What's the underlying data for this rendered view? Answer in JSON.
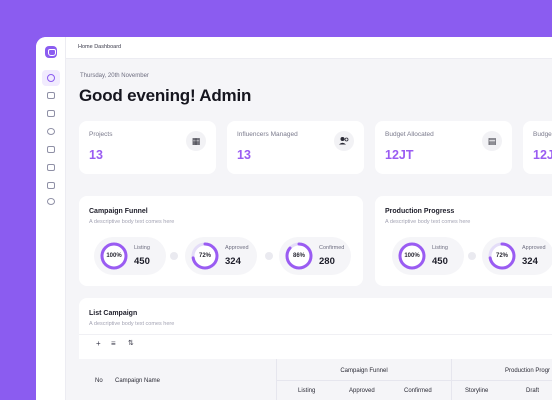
{
  "topbar": {
    "title": "Home Dashboard"
  },
  "header": {
    "date": "Thursday, 20th November",
    "greeting": "Good evening! Admin"
  },
  "sidebar": {
    "icons": [
      "dashboard-icon",
      "box-icon",
      "list-icon",
      "chat-icon",
      "layers-icon",
      "document-icon",
      "calendar-icon",
      "settings-icon"
    ]
  },
  "stats": [
    {
      "label": "Projects",
      "value": "13",
      "icon": "projects-icon",
      "glyph": "▦"
    },
    {
      "label": "Influencers Managed",
      "value": "13",
      "icon": "users-icon",
      "glyph": "👥"
    },
    {
      "label": "Budget Allocated",
      "value": "12JT",
      "icon": "wallet-icon",
      "glyph": "▤"
    },
    {
      "label": "Budge",
      "value": "12J",
      "icon": "wallet-icon",
      "glyph": ""
    }
  ],
  "campaign_funnel": {
    "title": "Campaign Funnel",
    "subtitle": "A descriptive body text comes here",
    "items": [
      {
        "pct_label": "100%",
        "pct": 1.0,
        "label": "Listing",
        "value": "450"
      },
      {
        "pct_label": "72%",
        "pct": 0.72,
        "label": "Approved",
        "value": "324"
      },
      {
        "pct_label": "86%",
        "pct": 0.86,
        "label": "Confirmed",
        "value": "280"
      }
    ]
  },
  "production_progress": {
    "title": "Production Progress",
    "subtitle": "A descriptive body text comes here",
    "items": [
      {
        "pct_label": "100%",
        "pct": 1.0,
        "label": "Listing",
        "value": "450"
      },
      {
        "pct_label": "72%",
        "pct": 0.72,
        "label": "Approved",
        "value": "324"
      }
    ]
  },
  "list_campaign": {
    "title": "List Campaign",
    "subtitle": "A descriptive body text comes here",
    "toolbar": {
      "add": "+",
      "filter": "≡",
      "sort": "⇅"
    },
    "columns": {
      "no": "No",
      "name": "Campaign Name",
      "group_funnel": "Campaign Funnel",
      "group_production": "Production Progr",
      "listing": "Listing",
      "approved": "Approved",
      "confirmed": "Confirmed",
      "storyline": "Storyline",
      "draft": "Draft"
    }
  },
  "colors": {
    "accent": "#9A5CF2",
    "background": "#8B5CF0",
    "ring_track": "#E4DDF8"
  }
}
